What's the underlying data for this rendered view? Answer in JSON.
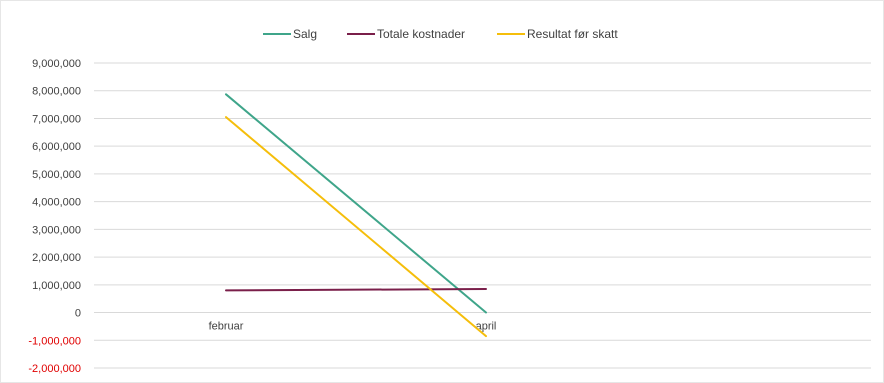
{
  "chart_data": {
    "type": "line",
    "categories": [
      "februar",
      "april"
    ],
    "series": [
      {
        "name": "Salg",
        "color": "#3fa58a",
        "values": [
          7870000,
          0
        ]
      },
      {
        "name": "Totale kostnader",
        "color": "#7a1f4a",
        "values": [
          800000,
          850000
        ]
      },
      {
        "name": "Resultat før skatt",
        "color": "#f5be0b",
        "values": [
          7050000,
          -850000
        ]
      }
    ],
    "ylim": [
      -2000000,
      9000000
    ],
    "yticks": [
      {
        "value": 9000000,
        "label": "9,000,000"
      },
      {
        "value": 8000000,
        "label": "8,000,000"
      },
      {
        "value": 7000000,
        "label": "7,000,000"
      },
      {
        "value": 6000000,
        "label": "6,000,000"
      },
      {
        "value": 5000000,
        "label": "5,000,000"
      },
      {
        "value": 4000000,
        "label": "4,000,000"
      },
      {
        "value": 3000000,
        "label": "3,000,000"
      },
      {
        "value": 2000000,
        "label": "2,000,000"
      },
      {
        "value": 1000000,
        "label": "1,000,000"
      },
      {
        "value": 0,
        "label": "0"
      },
      {
        "value": -1000000,
        "label": "-1,000,000"
      },
      {
        "value": -2000000,
        "label": "-2,000,000"
      }
    ],
    "negative_tick_color": "#e00000",
    "grid": true,
    "legend_position": "top-center",
    "title": "",
    "xlabel": "",
    "ylabel": ""
  }
}
